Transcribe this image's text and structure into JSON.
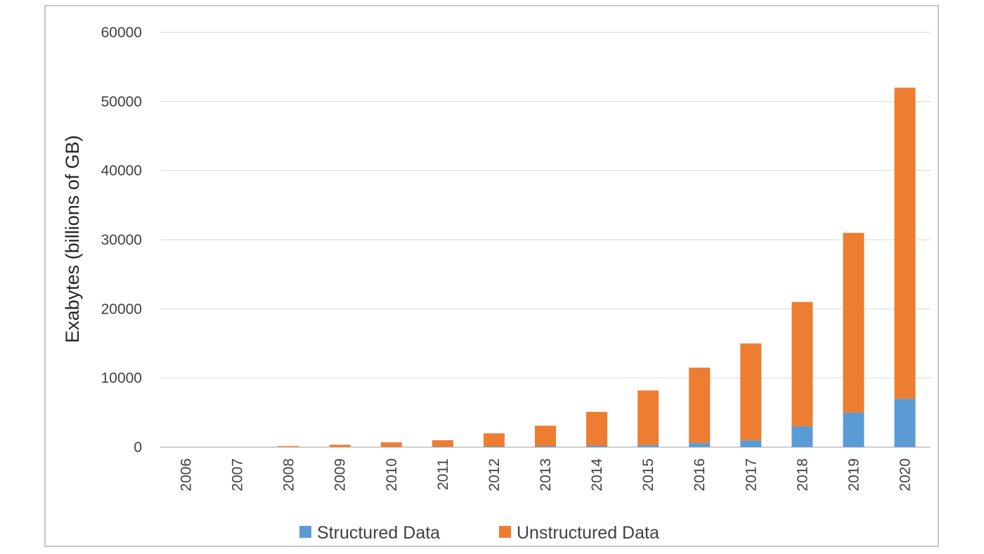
{
  "chart_data": {
    "type": "bar",
    "stacked": true,
    "categories": [
      "2006",
      "2007",
      "2008",
      "2009",
      "2010",
      "2011",
      "2012",
      "2013",
      "2014",
      "2015",
      "2016",
      "2017",
      "2018",
      "2019",
      "2020"
    ],
    "series": [
      {
        "name": "Structured Data",
        "color": "#5b9bd5",
        "values": [
          0,
          0,
          10,
          20,
          40,
          60,
          100,
          150,
          200,
          300,
          600,
          1000,
          3000,
          5000,
          7000
        ]
      },
      {
        "name": "Unstructured Data",
        "color": "#ed7d31",
        "values": [
          0,
          0,
          140,
          330,
          660,
          940,
          1900,
          2950,
          4900,
          7900,
          10900,
          14000,
          18000,
          26000,
          45000
        ]
      }
    ],
    "title": "",
    "xlabel": "",
    "ylabel": "Exabytes (billions of GB)",
    "ylim": [
      0,
      60000
    ],
    "yticks": [
      "0",
      "10000",
      "20000",
      "30000",
      "40000",
      "50000",
      "60000"
    ],
    "grid": true,
    "legend": "bottom"
  }
}
